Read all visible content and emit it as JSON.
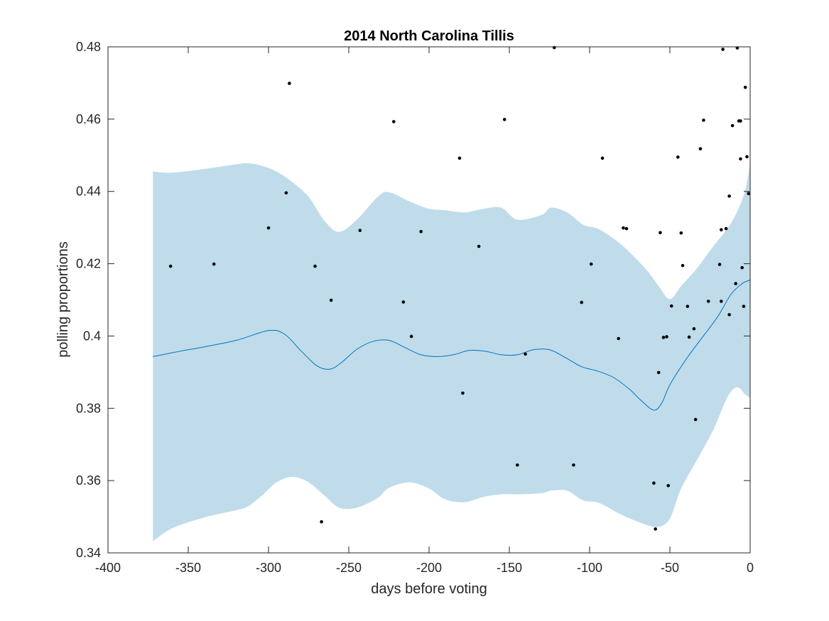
{
  "chart_data": {
    "type": "line",
    "title": "2014 North Carolina Tillis",
    "xlabel": "days before voting",
    "ylabel": "polling proportions",
    "xlim": [
      -400,
      0
    ],
    "ylim": [
      0.34,
      0.48
    ],
    "xticks": [
      -400,
      -350,
      -300,
      -250,
      -200,
      -150,
      -100,
      -50,
      0
    ],
    "yticks": [
      0.34,
      0.36,
      0.38,
      0.4,
      0.42,
      0.44,
      0.46,
      0.48
    ],
    "xtick_labels": [
      "-400",
      "-350",
      "-300",
      "-250",
      "-200",
      "-150",
      "-100",
      "-50",
      "0"
    ],
    "ytick_labels": [
      "0.34",
      "0.36",
      "0.38",
      "0.4",
      "0.42",
      "0.44",
      "0.46",
      "0.48"
    ],
    "grid": false,
    "series": [
      {
        "kind": "mean-line",
        "color": "#0072bd",
        "x": [
          -372,
          -355,
          -340,
          -320,
          -300,
          -290,
          -280,
          -270,
          -262,
          -255,
          -245,
          -235,
          -225,
          -215,
          -205,
          -195,
          -185,
          -175,
          -165,
          -155,
          -145,
          -135,
          -125,
          -115,
          -105,
          -95,
          -85,
          -75,
          -68,
          -60,
          -55,
          -50,
          -40,
          -30,
          -20,
          -12,
          -5,
          0
        ],
        "y": [
          0.3943,
          0.3958,
          0.397,
          0.3988,
          0.4015,
          0.4005,
          0.396,
          0.3918,
          0.3908,
          0.3925,
          0.3963,
          0.3985,
          0.3988,
          0.3968,
          0.3948,
          0.3943,
          0.3948,
          0.396,
          0.3958,
          0.3948,
          0.3948,
          0.3962,
          0.3962,
          0.394,
          0.3915,
          0.3903,
          0.3885,
          0.3852,
          0.3822,
          0.3795,
          0.3815,
          0.3865,
          0.3935,
          0.3995,
          0.4055,
          0.4115,
          0.4145,
          0.4155
        ]
      },
      {
        "kind": "confidence-band",
        "color": "#c0dceb",
        "x": [
          -372,
          -360,
          -340,
          -320,
          -313,
          -305,
          -295,
          -285,
          -275,
          -265,
          -256,
          -245,
          -232,
          -225,
          -212,
          -200,
          -190,
          -178,
          -166,
          -155,
          -145,
          -130,
          -124,
          -114,
          -104,
          -94,
          -80,
          -65,
          -57,
          -50,
          -43,
          -33,
          -23,
          -14,
          -8,
          -3,
          0
        ],
        "upper": [
          0.4455,
          0.4452,
          0.4462,
          0.4475,
          0.4478,
          0.4472,
          0.4455,
          0.4425,
          0.4385,
          0.4318,
          0.4288,
          0.4322,
          0.4385,
          0.4398,
          0.4372,
          0.4352,
          0.4348,
          0.4342,
          0.4352,
          0.4355,
          0.4322,
          0.4335,
          0.4355,
          0.4342,
          0.4308,
          0.4295,
          0.4252,
          0.4185,
          0.4138,
          0.4102,
          0.4138,
          0.4188,
          0.4248,
          0.4298,
          0.4345,
          0.4405,
          0.4478
        ],
        "lower": [
          0.3432,
          0.3468,
          0.3498,
          0.3518,
          0.3528,
          0.3555,
          0.3595,
          0.361,
          0.3595,
          0.3558,
          0.3525,
          0.3525,
          0.3552,
          0.358,
          0.3595,
          0.3578,
          0.3548,
          0.354,
          0.3555,
          0.3562,
          0.3562,
          0.3565,
          0.3572,
          0.3572,
          0.3545,
          0.3538,
          0.3505,
          0.3478,
          0.3472,
          0.3495,
          0.3578,
          0.3658,
          0.374,
          0.3832,
          0.3858,
          0.3838,
          0.3828
        ]
      },
      {
        "kind": "poll-points",
        "color": "#000000",
        "points": [
          [
            -361,
            0.4193
          ],
          [
            -334,
            0.4199
          ],
          [
            -300,
            0.4299
          ],
          [
            -289,
            0.4396
          ],
          [
            -287,
            0.4699
          ],
          [
            -271,
            0.4193
          ],
          [
            -267,
            0.3486
          ],
          [
            -261,
            0.4099
          ],
          [
            -243,
            0.4292
          ],
          [
            -222,
            0.4593
          ],
          [
            -216,
            0.4094
          ],
          [
            -211,
            0.3999
          ],
          [
            -205,
            0.4289
          ],
          [
            -181,
            0.4492
          ],
          [
            -179,
            0.3842
          ],
          [
            -169,
            0.4248
          ],
          [
            -153,
            0.4599
          ],
          [
            -145,
            0.3643
          ],
          [
            -140,
            0.395
          ],
          [
            -122,
            0.4798
          ],
          [
            -110,
            0.3643
          ],
          [
            -105,
            0.4093
          ],
          [
            -99,
            0.4199
          ],
          [
            -92,
            0.4492
          ],
          [
            -82,
            0.3993
          ],
          [
            -79,
            0.4299
          ],
          [
            -77,
            0.4297
          ],
          [
            -60,
            0.3593
          ],
          [
            -59,
            0.3466
          ],
          [
            -57,
            0.3899
          ],
          [
            -56,
            0.4286
          ],
          [
            -54,
            0.3996
          ],
          [
            -52,
            0.3998
          ],
          [
            -51,
            0.3586
          ],
          [
            -49,
            0.4083
          ],
          [
            -45,
            0.4495
          ],
          [
            -43,
            0.4285
          ],
          [
            -42,
            0.4195
          ],
          [
            -39,
            0.4082
          ],
          [
            -38,
            0.3997
          ],
          [
            -35,
            0.402
          ],
          [
            -34,
            0.3769
          ],
          [
            -31,
            0.4518
          ],
          [
            -29,
            0.4597
          ],
          [
            -26,
            0.4096
          ],
          [
            -19,
            0.4198
          ],
          [
            -18,
            0.4096
          ],
          [
            -18,
            0.4294
          ],
          [
            -17,
            0.4793
          ],
          [
            -15,
            0.4297
          ],
          [
            -13,
            0.4059
          ],
          [
            -13,
            0.4387
          ],
          [
            -11,
            0.4582
          ],
          [
            -9,
            0.4145
          ],
          [
            -8,
            0.4797
          ],
          [
            -7,
            0.4595
          ],
          [
            -6,
            0.4595
          ],
          [
            -6,
            0.449
          ],
          [
            -5,
            0.4189
          ],
          [
            -4,
            0.4082
          ],
          [
            -3,
            0.4688
          ],
          [
            -2,
            0.4496
          ],
          [
            -1,
            0.4394
          ]
        ]
      }
    ]
  }
}
